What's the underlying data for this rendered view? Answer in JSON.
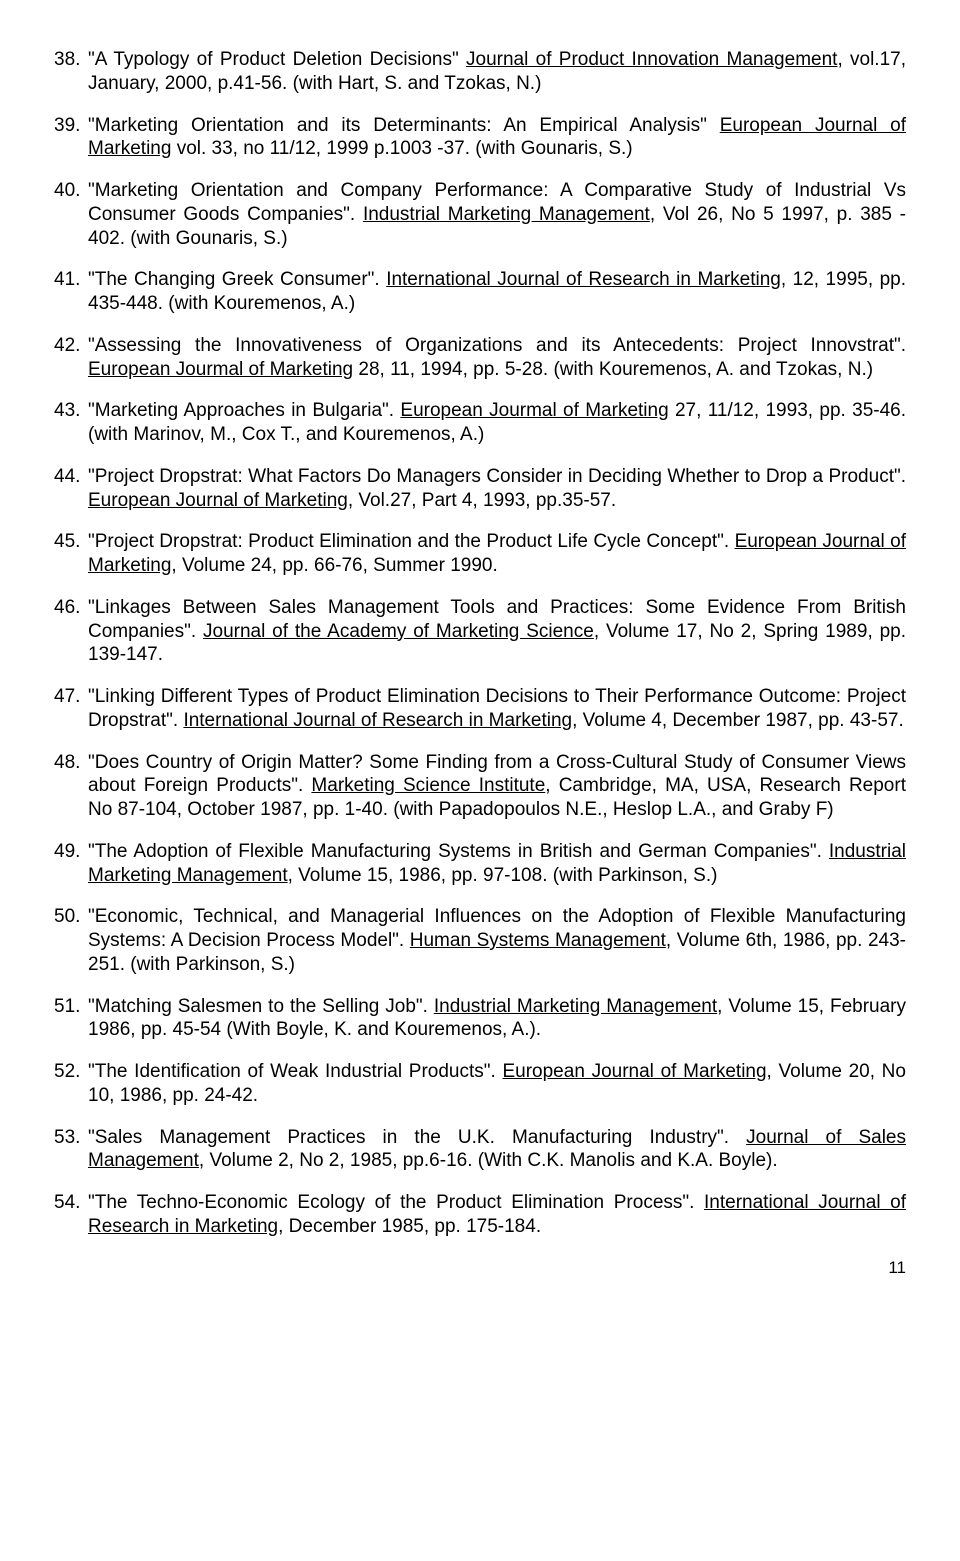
{
  "page": {
    "number": "11"
  },
  "refs": [
    {
      "pre": "\"A Typology of Product Deletion Decisions\" ",
      "journal": "Journal of Product Innovation Management",
      "post": ", vol.17, January, 2000, p.41-56. (with Hart, S. and Tzokas, N.)"
    },
    {
      "pre": "\"Marketing Orientation and its Determinants: An Empirical Analysis\" ",
      "journal": "European Journal of Marketing",
      "post": " vol. 33, no 11/12, 1999 p.1003 -37. (with Gounaris, S.)"
    },
    {
      "pre": "\"Marketing Orientation and Company Performance: A Comparative Study of Industrial Vs Consumer Goods Companies\". ",
      "journal": "Industrial Marketing Management",
      "post": ", Vol 26, No 5 1997, p. 385 - 402. (with Gounaris, S.)"
    },
    {
      "pre": "\"The Changing Greek Consumer\". ",
      "journal": "International Journal of Research in Marketing",
      "post": ", 12, 1995, pp. 435-448. (with Kouremenos, A.)"
    },
    {
      "pre": "\"Assessing the Innovativeness of Organizations and its Antecedents: Project Innovstrat\". ",
      "journal": "European Jourmal of Marketing",
      "post": " 28, 11, 1994, pp. 5-28. (with Kouremenos, A. and Tzokas, N.)"
    },
    {
      "pre": "\"Marketing Approaches in Bulgaria\". ",
      "journal": "European Jourmal of Marketing",
      "post": " 27, 11/12, 1993, pp. 35-46. (with Marinov, M., Cox T., and Kouremenos, A.)"
    },
    {
      "pre": "\"Project Dropstrat: What Factors Do Managers Consider in Deciding Whether to Drop a Product\". ",
      "journal": "European Journal of Marketing",
      "post": ", Vol.27, Part 4, 1993, pp.35-57."
    },
    {
      "pre": "\"Project Dropstrat: Product Elimination and the Product Life Cycle Concept\". ",
      "journal": "European Journal of Marketing",
      "post": ", Volume 24, pp. 66-76, Summer 1990."
    },
    {
      "pre": "\"Linkages Between Sales Management Tools and Practices: Some Evidence From British Companies\". ",
      "journal": "Journal of the Academy of Marketing Science",
      "post": ", Volume 17, No 2, Spring 1989, pp. 139-147."
    },
    {
      "pre": "\"Linking Different Types of Product Elimination Decisions to Their Performance Outcome: Project Dropstrat\". ",
      "journal": "International Journal of Research in Marketing",
      "post": ", Volume 4, December 1987, pp. 43-57."
    },
    {
      "pre": "\"Does Country of Origin Matter? Some Finding from a Cross-Cultural Study of Consumer Views about Foreign Products\".  ",
      "journal": "Marketing Science Institute",
      "post": ", Cambridge, MA, USA, Research Report No 87-104, October 1987, pp. 1-40. (with Papadopoulos N.E., Heslop L.A., and Graby F)"
    },
    {
      "pre": "\"The Adoption of Flexible Manufacturing Systems in British and German Companies\". ",
      "journal": "Industrial Marketing Management",
      "post": ", Volume 15, 1986, pp. 97-108. (with Parkinson, S.)"
    },
    {
      "pre": "\"Economic, Technical, and Managerial Influences on the Adoption of Flexible Manufacturing Systems: A Decision Process Model\". ",
      "journal": "Human Systems Management",
      "post": ", Volume 6th, 1986, pp. 243-251. (with Parkinson, S.)"
    },
    {
      "pre": "\"Matching Salesmen to the Selling Job\". ",
      "journal": "Industrial Marketing Management",
      "post": ", Volume 15, February 1986, pp. 45-54 (With Boyle, K. and Kouremenos, A.)."
    },
    {
      "pre": "\"The Identification of Weak Industrial Products\". ",
      "journal": "European Journal of Marketing",
      "post": ", Volume 20, No 10, 1986, pp. 24-42."
    },
    {
      "pre": "\"Sales Management Practices in the U.K. Manufacturing Industry\". ",
      "journal": "Journal of Sales Management",
      "post": ", Volume 2, No 2, 1985, pp.6-16. (With C.K. Manolis and K.A. Boyle)."
    },
    {
      "pre": "\"The Techno-Economic Ecology of the Product Elimination Process\". ",
      "journal": "International Journal of Research in Marketing",
      "post": ", December 1985, pp. 175-184."
    }
  ]
}
